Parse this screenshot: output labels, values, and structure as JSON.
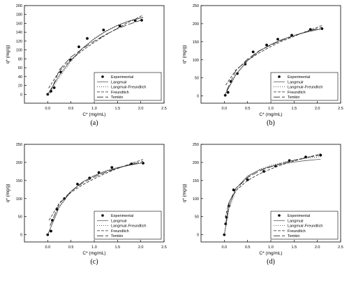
{
  "chart_data": [
    {
      "type": "scatter",
      "panel_label": "(a)",
      "xlabel": "C* (mg/mL)",
      "ylabel": "q* (mg/g)",
      "xlim": [
        -0.5,
        2.5
      ],
      "ylim": [
        -20,
        200
      ],
      "xticks": [
        0.0,
        0.5,
        1.0,
        1.5,
        2.0,
        2.5
      ],
      "yticks": [
        0,
        20,
        40,
        60,
        80,
        100,
        120,
        140,
        160,
        180,
        200
      ],
      "grid": false,
      "legend": "bottom-right",
      "series": [
        {
          "name": "Experimental",
          "kind": "points",
          "x": [
            0.0,
            0.07,
            0.14,
            0.28,
            0.49,
            0.67,
            0.85,
            1.2,
            1.55,
            1.88,
            2.02
          ],
          "y": [
            0,
            7,
            15,
            50,
            78,
            107,
            126,
            145,
            154,
            166,
            167
          ]
        },
        {
          "name": "Langmuir",
          "kind": "line",
          "style": "solid",
          "x": [
            0.0,
            0.25,
            0.5,
            0.75,
            1.0,
            1.25,
            1.5,
            1.75,
            2.0,
            2.05
          ],
          "y": [
            0,
            43,
            77,
            104,
            125,
            142,
            155,
            165,
            172,
            173
          ]
        },
        {
          "name": "Langmuir-Freundlich",
          "kind": "line",
          "style": "dotted",
          "x": [
            0.0,
            0.25,
            0.5,
            0.75,
            1.0,
            1.25,
            1.5,
            1.75,
            2.0,
            2.05
          ],
          "y": [
            0,
            38,
            74,
            104,
            126,
            143,
            156,
            166,
            173,
            174
          ]
        },
        {
          "name": "Freundlich",
          "kind": "line",
          "style": "short-dash",
          "x": [
            0.02,
            0.25,
            0.5,
            0.75,
            1.0,
            1.25,
            1.5,
            1.75,
            2.0,
            2.05
          ],
          "y": [
            14,
            52,
            78,
            99,
            117,
            134,
            149,
            163,
            176,
            179
          ]
        },
        {
          "name": "Temkin",
          "kind": "line",
          "style": "long-dash",
          "x": [
            0.05,
            0.25,
            0.5,
            0.75,
            1.0,
            1.25,
            1.5,
            1.75,
            2.0,
            2.05
          ],
          "y": [
            2,
            55,
            84,
            103,
            120,
            135,
            148,
            158,
            167,
            170
          ]
        }
      ]
    },
    {
      "type": "scatter",
      "panel_label": "(b)",
      "xlabel": "C* (mg/mL)",
      "ylabel": "q* (mg/g)",
      "xlim": [
        -0.5,
        2.5
      ],
      "ylim": [
        -20,
        250
      ],
      "xticks": [
        0.0,
        0.5,
        1.0,
        1.5,
        2.0,
        2.5
      ],
      "yticks": [
        0,
        50,
        100,
        150,
        200,
        250
      ],
      "grid": false,
      "legend": "bottom-right",
      "series": [
        {
          "name": "Experimental",
          "kind": "points",
          "x": [
            0.02,
            0.08,
            0.14,
            0.28,
            0.45,
            0.62,
            0.91,
            1.15,
            1.45,
            1.85,
            2.1
          ],
          "y": [
            2,
            10,
            40,
            62,
            88,
            122,
            141,
            157,
            168,
            184,
            186
          ]
        },
        {
          "name": "Langmuir",
          "kind": "line",
          "style": "solid",
          "x": [
            0.0,
            0.25,
            0.5,
            0.75,
            1.0,
            1.25,
            1.5,
            1.75,
            2.0,
            2.1
          ],
          "y": [
            0,
            60,
            98,
            124,
            142,
            156,
            167,
            176,
            183,
            185
          ]
        },
        {
          "name": "Langmuir-Freundlich",
          "kind": "line",
          "style": "dotted",
          "x": [
            0.0,
            0.25,
            0.5,
            0.75,
            1.0,
            1.25,
            1.5,
            1.75,
            2.0,
            2.1
          ],
          "y": [
            0,
            58,
            97,
            124,
            143,
            157,
            168,
            177,
            184,
            187
          ]
        },
        {
          "name": "Freundlich",
          "kind": "line",
          "style": "short-dash",
          "x": [
            0.03,
            0.25,
            0.5,
            0.75,
            1.0,
            1.25,
            1.5,
            1.75,
            2.0,
            2.1
          ],
          "y": [
            30,
            72,
            99,
            119,
            137,
            152,
            165,
            178,
            190,
            195
          ]
        },
        {
          "name": "Temkin",
          "kind": "line",
          "style": "long-dash",
          "x": [
            0.05,
            0.25,
            0.5,
            0.75,
            1.0,
            1.25,
            1.5,
            1.75,
            2.0,
            2.1
          ],
          "y": [
            15,
            70,
            102,
            125,
            141,
            155,
            167,
            177,
            186,
            190
          ]
        }
      ]
    },
    {
      "type": "scatter",
      "panel_label": "(c)",
      "xlabel": "C* (mg/mL)",
      "ylabel": "q* (mg/g)",
      "xlim": [
        -0.5,
        2.5
      ],
      "ylim": [
        -20,
        250
      ],
      "xticks": [
        0.0,
        0.5,
        1.0,
        1.5,
        2.0,
        2.5
      ],
      "yticks": [
        0,
        50,
        100,
        150,
        200,
        250
      ],
      "grid": false,
      "legend": "bottom-right",
      "series": [
        {
          "name": "Experimental",
          "kind": "points",
          "x": [
            0.0,
            0.07,
            0.1,
            0.2,
            0.36,
            0.64,
            0.9,
            1.1,
            1.38,
            1.8,
            2.05
          ],
          "y": [
            0,
            10,
            40,
            70,
            100,
            140,
            157,
            172,
            186,
            196,
            198
          ]
        },
        {
          "name": "Langmuir",
          "kind": "line",
          "style": "solid",
          "x": [
            0.0,
            0.25,
            0.5,
            0.75,
            1.0,
            1.25,
            1.5,
            1.75,
            2.0,
            2.05
          ],
          "y": [
            0,
            78,
            120,
            146,
            163,
            176,
            185,
            192,
            198,
            199
          ]
        },
        {
          "name": "Langmuir-Freundlich",
          "kind": "line",
          "style": "dotted",
          "x": [
            0.0,
            0.25,
            0.5,
            0.75,
            1.0,
            1.25,
            1.5,
            1.75,
            2.0,
            2.05
          ],
          "y": [
            0,
            76,
            119,
            146,
            164,
            177,
            186,
            193,
            199,
            200
          ]
        },
        {
          "name": "Freundlich",
          "kind": "line",
          "style": "short-dash",
          "x": [
            0.03,
            0.25,
            0.5,
            0.75,
            1.0,
            1.25,
            1.5,
            1.75,
            2.0,
            2.05
          ],
          "y": [
            40,
            88,
            117,
            138,
            155,
            170,
            183,
            195,
            206,
            208
          ]
        },
        {
          "name": "Temkin",
          "kind": "line",
          "style": "long-dash",
          "x": [
            0.05,
            0.25,
            0.5,
            0.75,
            1.0,
            1.25,
            1.5,
            1.75,
            2.0,
            2.05
          ],
          "y": [
            25,
            86,
            120,
            143,
            160,
            173,
            184,
            193,
            201,
            203
          ]
        }
      ]
    },
    {
      "type": "scatter",
      "panel_label": "(d)",
      "xlabel": "C* (mg/mL)",
      "ylabel": "q* (mg/g)",
      "xlim": [
        -0.5,
        2.5
      ],
      "ylim": [
        -20,
        250
      ],
      "xticks": [
        0.0,
        0.5,
        1.0,
        1.5,
        2.0,
        2.5
      ],
      "yticks": [
        0,
        50,
        100,
        150,
        200,
        250
      ],
      "grid": false,
      "legend": "bottom-right",
      "series": [
        {
          "name": "Experimental",
          "kind": "points",
          "x": [
            0.0,
            0.03,
            0.05,
            0.1,
            0.2,
            0.5,
            0.85,
            1.1,
            1.4,
            1.75,
            2.07
          ],
          "y": [
            0,
            30,
            48,
            80,
            124,
            152,
            175,
            190,
            205,
            215,
            220
          ]
        },
        {
          "name": "Langmuir",
          "kind": "line",
          "style": "solid",
          "x": [
            0.0,
            0.1,
            0.25,
            0.5,
            0.75,
            1.0,
            1.25,
            1.5,
            1.75,
            2.0,
            2.07
          ],
          "y": [
            0,
            78,
            128,
            162,
            179,
            189,
            196,
            201,
            205,
            208,
            209
          ]
        },
        {
          "name": "Langmuir-Freundlich",
          "kind": "line",
          "style": "dotted",
          "x": [
            0.0,
            0.1,
            0.25,
            0.5,
            0.75,
            1.0,
            1.25,
            1.5,
            1.75,
            2.0,
            2.07
          ],
          "y": [
            0,
            70,
            122,
            160,
            180,
            192,
            200,
            206,
            211,
            215,
            216
          ]
        },
        {
          "name": "Freundlich",
          "kind": "line",
          "style": "short-dash",
          "x": [
            0.02,
            0.1,
            0.25,
            0.5,
            0.75,
            1.0,
            1.25,
            1.5,
            1.75,
            2.0,
            2.07
          ],
          "y": [
            48,
            90,
            122,
            150,
            168,
            182,
            194,
            204,
            213,
            221,
            224
          ]
        },
        {
          "name": "Temkin",
          "kind": "line",
          "style": "long-dash",
          "x": [
            0.03,
            0.1,
            0.25,
            0.5,
            0.75,
            1.0,
            1.25,
            1.5,
            1.75,
            2.0,
            2.07
          ],
          "y": [
            30,
            88,
            128,
            158,
            176,
            188,
            198,
            206,
            213,
            219,
            221
          ]
        }
      ]
    }
  ]
}
